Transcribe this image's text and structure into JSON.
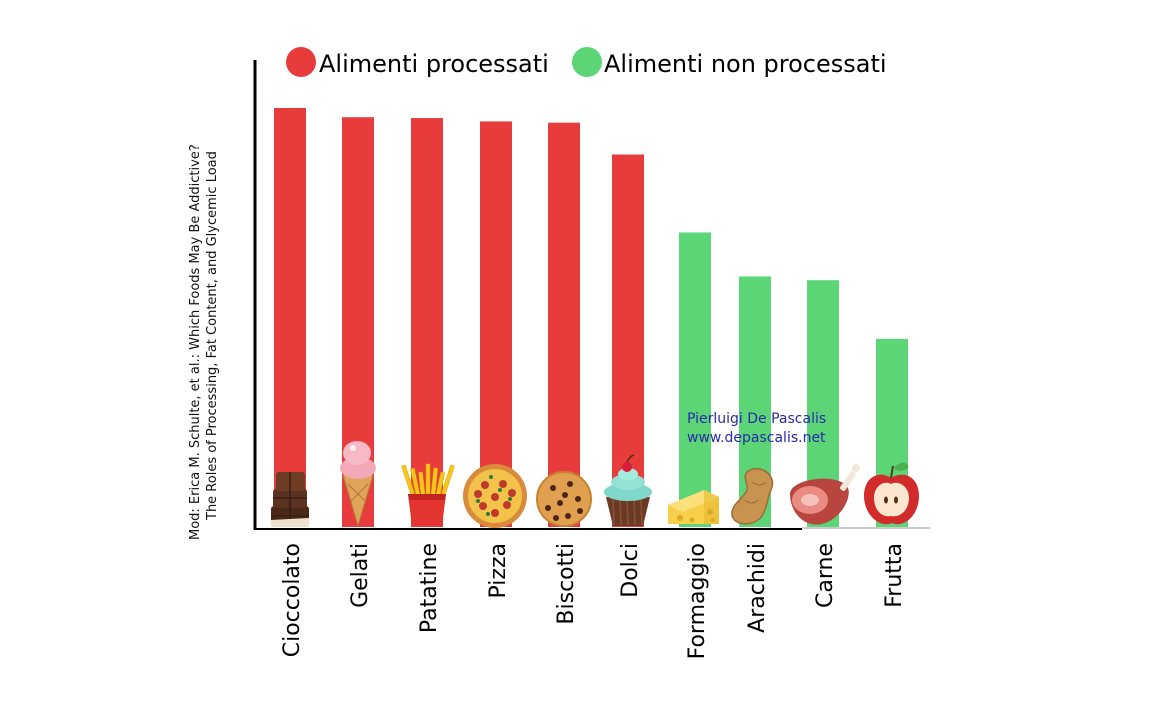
{
  "chart_data": {
    "type": "bar",
    "categories": [
      "Cioccolato",
      "Gelati",
      "Patatine",
      "Pizza",
      "Biscotti",
      "Dolci",
      "Formaggio",
      "Arachidi",
      "Carne",
      "Frutta"
    ],
    "values": [
      100,
      97.8,
      97.6,
      96.8,
      96.5,
      88.9,
      70.3,
      59.8,
      58.9,
      44.9
    ],
    "groups": [
      "processed",
      "processed",
      "processed",
      "processed",
      "processed",
      "processed",
      "unprocessed",
      "unprocessed",
      "unprocessed",
      "unprocessed"
    ],
    "legend": [
      {
        "key": "processed",
        "label": "Alimenti processati",
        "color": "#e83c3c"
      },
      {
        "key": "unprocessed",
        "label": "Alimenti non processati",
        "color": "#5cd577"
      }
    ],
    "legend_position": "top",
    "ylim": [
      0,
      100
    ],
    "grid": false,
    "icons": [
      "chocolate-icon",
      "ice-cream-icon",
      "fries-icon",
      "pizza-icon",
      "cookie-icon",
      "cupcake-icon",
      "cheese-icon",
      "peanut-icon",
      "ham-icon",
      "apple-icon"
    ],
    "source_lines": [
      "Mod: Erica M. Schulte, et al.: Which Foods May Be Addictive?",
      "The Roles of Processing, Fat Content, and Glycemic Load"
    ],
    "credit_lines": [
      "Pierluigi De Pascalis",
      "www.depascalis.net"
    ]
  }
}
